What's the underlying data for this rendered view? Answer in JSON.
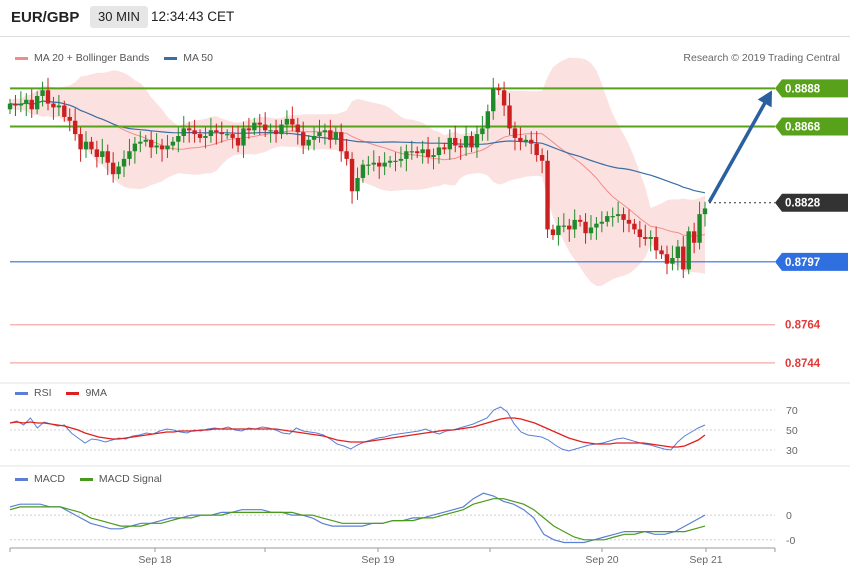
{
  "header": {
    "pair": "EUR/GBP",
    "timeframe": "30 MIN",
    "time": "12:34:43 CET"
  },
  "legend_main": [
    {
      "label": "MA 20 + Bollinger Bands",
      "color": "#f28c8c"
    },
    {
      "label": "MA 50",
      "color": "#3a6ea5"
    }
  ],
  "copyright": "Research © 2019 Trading Central",
  "legend_rsi": [
    {
      "label": "RSI",
      "color": "#5b7fd6"
    },
    {
      "label": "9MA",
      "color": "#e02020"
    }
  ],
  "legend_macd": [
    {
      "label": "MACD",
      "color": "#5b7fd6"
    },
    {
      "label": "MACD Signal",
      "color": "#4a9a1a"
    }
  ],
  "colors": {
    "resistance": "#58a11a",
    "current": "#333333",
    "support": "#2f6fe0",
    "minor": "#f5a9a9",
    "up": "#1f8a2a",
    "down": "#cc1f1f",
    "arrow": "#2a5fa0"
  },
  "chart_data": [
    {
      "type": "candlestick",
      "title": "EUR/GBP",
      "timeframe": "30 MIN",
      "x_ticks": [
        "Sep 18",
        "Sep 19",
        "Sep 20",
        "Sep 21"
      ],
      "ylim": [
        0.8735,
        0.8895
      ],
      "levels": [
        {
          "value": 0.8888,
          "label": "0.8888",
          "kind": "resistance"
        },
        {
          "value": 0.8868,
          "label": "0.8868",
          "kind": "resistance"
        },
        {
          "value": 0.8828,
          "label": "0.8828",
          "kind": "current"
        },
        {
          "value": 0.8797,
          "label": "0.8797",
          "kind": "support"
        },
        {
          "value": 0.8764,
          "label": "0.8764",
          "kind": "minor"
        },
        {
          "value": 0.8744,
          "label": "0.8744",
          "kind": "minor"
        }
      ],
      "projection": {
        "from": 0.8828,
        "to": 0.8888
      },
      "series": [
        {
          "name": "Close",
          "values": [
            0.888,
            0.8879,
            0.888,
            0.8882,
            0.8877,
            0.8884,
            0.8887,
            0.888,
            0.8878,
            0.8879,
            0.8873,
            0.8871,
            0.8864,
            0.8856,
            0.886,
            0.8856,
            0.8852,
            0.8855,
            0.8849,
            0.8843,
            0.8847,
            0.8851,
            0.8855,
            0.8859,
            0.886,
            0.8861,
            0.8857,
            0.8858,
            0.8856,
            0.8858,
            0.886,
            0.8863,
            0.8867,
            0.8866,
            0.8864,
            0.8862,
            0.8863,
            0.8866,
            0.8865,
            0.8864,
            0.8864,
            0.8862,
            0.8858,
            0.8867,
            0.8866,
            0.887,
            0.8869,
            0.8866,
            0.8866,
            0.8864,
            0.8869,
            0.8872,
            0.8869,
            0.8865,
            0.8858,
            0.8861,
            0.8863,
            0.8865,
            0.8866,
            0.8861,
            0.8865,
            0.8855,
            0.8851,
            0.8834,
            0.8841,
            0.8848,
            0.8848,
            0.8849,
            0.8847,
            0.8849,
            0.885,
            0.885,
            0.8851,
            0.8855,
            0.8855,
            0.8854,
            0.8856,
            0.8852,
            0.8853,
            0.8857,
            0.8856,
            0.8862,
            0.8858,
            0.8857,
            0.8863,
            0.8857,
            0.8864,
            0.8867,
            0.8876,
            0.8888,
            0.8887,
            0.8879,
            0.8867,
            0.8862,
            0.886,
            0.8861,
            0.8859,
            0.8853,
            0.885,
            0.8814,
            0.8811,
            0.8816,
            0.8816,
            0.8814,
            0.8819,
            0.8818,
            0.8812,
            0.8815,
            0.8817,
            0.8818,
            0.8821,
            0.8821,
            0.8822,
            0.8819,
            0.8817,
            0.8814,
            0.881,
            0.8809,
            0.881,
            0.8803,
            0.8801,
            0.8796,
            0.8799,
            0.8805,
            0.8793,
            0.8813,
            0.8807,
            0.8822,
            0.8825
          ]
        }
      ]
    },
    {
      "type": "line",
      "title": "RSI",
      "ylim": [
        20,
        80
      ],
      "y_ticks": [
        30,
        50,
        70
      ],
      "series": [
        {
          "name": "RSI",
          "values": [
            57,
            59,
            55,
            62,
            52,
            58,
            56,
            54,
            55,
            47,
            42,
            37,
            41,
            40,
            38,
            40,
            42,
            41,
            44,
            45,
            47,
            46,
            49,
            51,
            50,
            48,
            47,
            50,
            49,
            51,
            52,
            51,
            53,
            50,
            49,
            52,
            51,
            53,
            52,
            50,
            47,
            46,
            52,
            49,
            48,
            47,
            45,
            41,
            36,
            34,
            31,
            35,
            38,
            40,
            42,
            43,
            45,
            46,
            47,
            48,
            49,
            51,
            48,
            46,
            49,
            50,
            52,
            54,
            56,
            59,
            62,
            70,
            73,
            68,
            56,
            48,
            45,
            44,
            43,
            40,
            35,
            31,
            29,
            31,
            33,
            35,
            36,
            37,
            39,
            41,
            42,
            40,
            38,
            36,
            35,
            33,
            31,
            30,
            38,
            44,
            48,
            52,
            55
          ]
        },
        {
          "name": "9MA",
          "values": [
            57,
            58,
            57,
            58,
            57,
            57,
            56,
            55,
            54,
            52,
            50,
            47,
            45,
            43,
            42,
            41,
            41,
            42,
            43,
            44,
            45,
            46,
            47,
            48,
            48,
            49,
            49,
            49,
            50,
            50,
            51,
            51,
            51,
            51,
            51,
            51,
            51,
            51,
            51,
            51,
            50,
            49,
            48,
            47,
            46,
            45,
            44,
            42,
            40,
            39,
            38,
            38,
            38,
            39,
            40,
            41,
            42,
            43,
            44,
            45,
            46,
            47,
            48,
            49,
            50,
            50,
            51,
            52,
            53,
            55,
            57,
            59,
            61,
            62,
            62,
            61,
            59,
            57,
            54,
            51,
            48,
            45,
            42,
            40,
            38,
            37,
            36,
            36,
            36,
            37,
            37,
            37,
            37,
            37,
            36,
            35,
            34,
            33,
            33,
            34,
            37,
            40,
            45
          ]
        }
      ]
    },
    {
      "type": "line",
      "title": "MACD",
      "ylim": [
        -0.0012,
        0.0011
      ],
      "y_ticks": [
        0,
        -0.0
      ],
      "y_tick_labels": [
        "0",
        "-0"
      ],
      "series": [
        {
          "name": "MACD",
          "values": [
            0.0003,
            0.0004,
            0.0004,
            0.0004,
            0.0003,
            0.0003,
            0.0001,
            -0.0001,
            -0.0003,
            -0.0004,
            -0.0005,
            -0.0005,
            -0.0004,
            -0.0003,
            -0.0003,
            -0.0002,
            -0.0001,
            -0.0001,
            0.0,
            0.0,
            0.0,
            0.0001,
            0.0001,
            0.0002,
            0.0002,
            0.0002,
            0.0001,
            0.0001,
            0.0,
            0.0,
            -0.0001,
            -0.0003,
            -0.0004,
            -0.0004,
            -0.0004,
            -0.0004,
            -0.0003,
            -0.0003,
            -0.0002,
            -0.0002,
            -0.0001,
            -0.0001,
            0.0,
            0.0001,
            0.0002,
            0.0003,
            0.0006,
            0.0008,
            0.0007,
            0.0005,
            0.0004,
            0.0002,
            -0.0001,
            -0.0007,
            -0.0009,
            -0.001,
            -0.001,
            -0.001,
            -0.0009,
            -0.0008,
            -0.0007,
            -0.0006,
            -0.0006,
            -0.0006,
            -0.0007,
            -0.0007,
            -0.0006,
            -0.0004,
            -0.0002,
            0.0
          ]
        },
        {
          "name": "MACD Signal",
          "values": [
            0.0002,
            0.0003,
            0.0003,
            0.0003,
            0.0003,
            0.0003,
            0.0002,
            0.0001,
            -0.0001,
            -0.0002,
            -0.0003,
            -0.0004,
            -0.0004,
            -0.0004,
            -0.0003,
            -0.0003,
            -0.0002,
            -0.0001,
            -0.0001,
            0.0,
            0.0,
            0.0,
            0.0001,
            0.0001,
            0.0001,
            0.0001,
            0.0001,
            0.0001,
            0.0001,
            0.0,
            0.0,
            -0.0001,
            -0.0002,
            -0.0003,
            -0.0003,
            -0.0003,
            -0.0003,
            -0.0003,
            -0.0002,
            -0.0002,
            -0.0002,
            -0.0001,
            -0.0001,
            0.0,
            0.0001,
            0.0002,
            0.0004,
            0.0005,
            0.0006,
            0.0006,
            0.0005,
            0.0004,
            0.0002,
            -0.0001,
            -0.0004,
            -0.0006,
            -0.0008,
            -0.0009,
            -0.0009,
            -0.0009,
            -0.0008,
            -0.0007,
            -0.0007,
            -0.0006,
            -0.0006,
            -0.0006,
            -0.0006,
            -0.0006,
            -0.0005,
            -0.0004
          ]
        }
      ]
    }
  ]
}
